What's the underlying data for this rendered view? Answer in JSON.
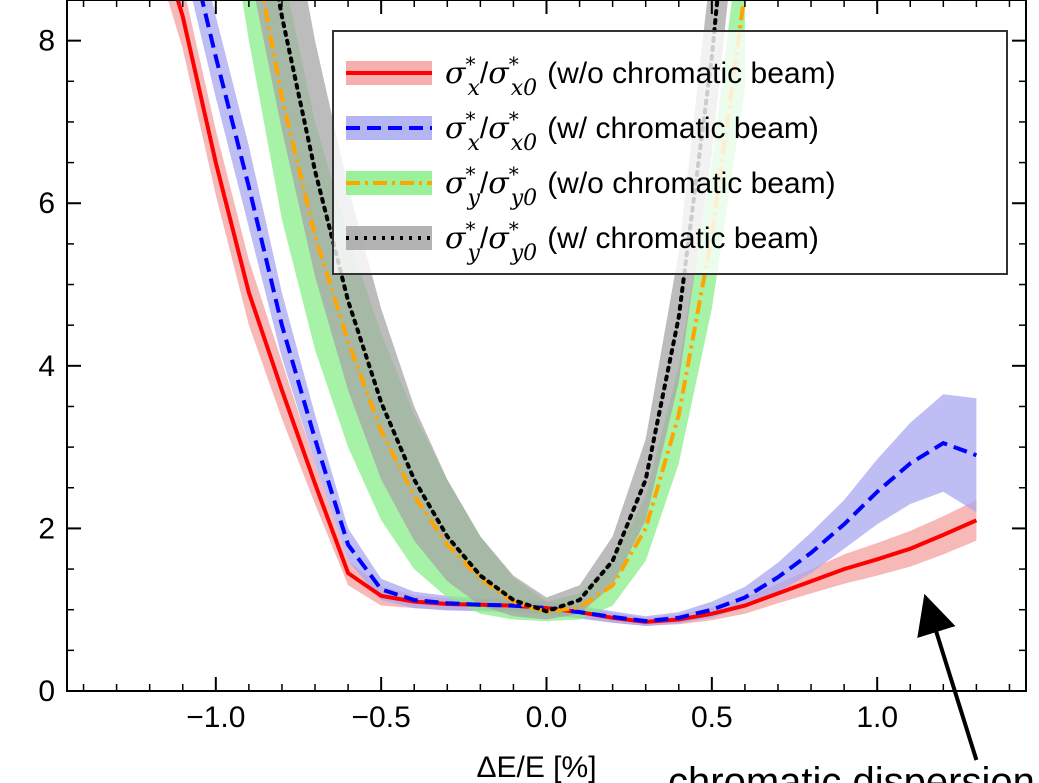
{
  "chart_data": {
    "type": "line",
    "title": "",
    "xlabel": "ΔE/E [%]",
    "ylabel": "",
    "xlim": [
      -1.45,
      1.45
    ],
    "ylim": [
      0,
      8.5
    ],
    "x_ticks": [
      -1.0,
      -0.5,
      0.0,
      0.5,
      1.0
    ],
    "x_tick_labels": [
      "−1.0",
      "−0.5",
      "0.0",
      "0.5",
      "1.0"
    ],
    "y_ticks": [
      0,
      2,
      4,
      6,
      8
    ],
    "y_tick_labels": [
      "0",
      "2",
      "4",
      "6",
      "8"
    ],
    "grid": false,
    "legend_placement": "top-right",
    "series": [
      {
        "name": "σ*x/σ*x0 (w/o chromatic beam)",
        "legend_math_base": "σ",
        "legend_math_sub1": "x",
        "legend_math_sub2": "x0",
        "legend_suffix": "(w/o chromatic beam)",
        "line_color": "#ff0000",
        "band_color": "#f4a0a0",
        "dash": "solid",
        "x": [
          -1.3,
          -1.1,
          -1.0,
          -0.9,
          -0.8,
          -0.7,
          -0.6,
          -0.5,
          -0.4,
          -0.3,
          -0.2,
          -0.1,
          0.0,
          0.1,
          0.2,
          0.3,
          0.4,
          0.5,
          0.6,
          0.7,
          0.8,
          0.9,
          1.0,
          1.1,
          1.2,
          1.3
        ],
        "y": [
          11.0,
          8.3,
          6.5,
          4.9,
          3.7,
          2.55,
          1.45,
          1.17,
          1.1,
          1.07,
          1.06,
          1.05,
          1.02,
          0.97,
          0.9,
          0.85,
          0.88,
          0.95,
          1.05,
          1.2,
          1.35,
          1.5,
          1.62,
          1.75,
          1.92,
          2.1
        ],
        "band_lo": [
          10.6,
          7.9,
          6.1,
          4.5,
          3.35,
          2.3,
          1.3,
          1.05,
          1.02,
          1.0,
          0.99,
          0.98,
          0.95,
          0.9,
          0.84,
          0.8,
          0.82,
          0.87,
          0.95,
          1.08,
          1.2,
          1.32,
          1.42,
          1.53,
          1.68,
          1.85
        ],
        "band_hi": [
          11.4,
          8.7,
          6.9,
          5.3,
          4.05,
          2.8,
          1.6,
          1.29,
          1.18,
          1.14,
          1.13,
          1.12,
          1.09,
          1.04,
          0.96,
          0.9,
          0.94,
          1.03,
          1.15,
          1.32,
          1.5,
          1.68,
          1.82,
          1.97,
          2.15,
          2.35
        ]
      },
      {
        "name": "σ*x/σ*x0 (w/ chromatic beam)",
        "legend_math_base": "σ",
        "legend_math_sub1": "x",
        "legend_math_sub2": "x0",
        "legend_suffix": "(w/ chromatic beam)",
        "line_color": "#0000ff",
        "band_color": "#a8a8f0",
        "dash": "dashed",
        "x": [
          -1.3,
          -1.1,
          -1.0,
          -0.9,
          -0.8,
          -0.7,
          -0.6,
          -0.5,
          -0.4,
          -0.3,
          -0.2,
          -0.1,
          0.0,
          0.1,
          0.2,
          0.3,
          0.4,
          0.5,
          0.6,
          0.7,
          0.8,
          0.9,
          1.0,
          1.1,
          1.2,
          1.3
        ],
        "y": [
          11.5,
          9.5,
          7.8,
          6.2,
          4.5,
          3.1,
          1.8,
          1.25,
          1.12,
          1.08,
          1.06,
          1.05,
          1.02,
          0.97,
          0.91,
          0.86,
          0.9,
          1.0,
          1.15,
          1.4,
          1.7,
          2.05,
          2.45,
          2.8,
          3.05,
          2.9
        ],
        "band_lo": [
          11.0,
          9.0,
          7.3,
          5.7,
          4.1,
          2.8,
          1.6,
          1.12,
          1.02,
          0.99,
          0.98,
          0.97,
          0.94,
          0.89,
          0.84,
          0.8,
          0.83,
          0.9,
          1.03,
          1.22,
          1.45,
          1.75,
          2.05,
          2.3,
          2.45,
          2.2
        ],
        "band_hi": [
          12.0,
          10.0,
          8.3,
          6.7,
          4.9,
          3.4,
          2.0,
          1.38,
          1.22,
          1.17,
          1.14,
          1.13,
          1.1,
          1.05,
          0.98,
          0.92,
          0.97,
          1.1,
          1.28,
          1.58,
          1.95,
          2.35,
          2.85,
          3.3,
          3.65,
          3.6
        ]
      },
      {
        "name": "σ*y/σ*y0 (w/o chromatic beam)",
        "legend_math_base": "σ",
        "legend_math_sub1": "y",
        "legend_math_sub2": "y0",
        "legend_suffix": "(w/o chromatic beam)",
        "line_color": "#ffa500",
        "band_color": "#88ee88",
        "dash": "dashdot",
        "x": [
          -1.0,
          -0.9,
          -0.8,
          -0.7,
          -0.6,
          -0.5,
          -0.4,
          -0.3,
          -0.2,
          -0.1,
          0.0,
          0.1,
          0.2,
          0.3,
          0.4,
          0.5,
          0.6
        ],
        "y": [
          12.0,
          9.5,
          7.3,
          5.6,
          4.3,
          3.2,
          2.4,
          1.8,
          1.38,
          1.1,
          0.97,
          1.03,
          1.3,
          2.0,
          3.4,
          5.6,
          8.6
        ],
        "band_lo": [
          10.5,
          8.0,
          5.8,
          4.2,
          3.0,
          2.1,
          1.5,
          1.15,
          0.95,
          0.88,
          0.86,
          0.88,
          1.05,
          1.6,
          2.8,
          4.7,
          7.4
        ],
        "band_hi": [
          13.5,
          11.0,
          8.9,
          7.0,
          5.6,
          4.4,
          3.4,
          2.6,
          1.9,
          1.4,
          1.1,
          1.2,
          1.6,
          2.4,
          4.0,
          6.5,
          9.8
        ]
      },
      {
        "name": "σ*y/σ*y0 (w/ chromatic beam)",
        "legend_math_base": "σ",
        "legend_math_sub1": "y",
        "legend_math_sub2": "y0",
        "legend_suffix": "(w/ chromatic beam)",
        "line_color": "#000000",
        "band_color": "#a6a6a6",
        "dash": "dotted",
        "x": [
          -0.9,
          -0.8,
          -0.7,
          -0.6,
          -0.5,
          -0.4,
          -0.3,
          -0.2,
          -0.1,
          0.0,
          0.1,
          0.2,
          0.3,
          0.4,
          0.5,
          0.6
        ],
        "y": [
          10.5,
          8.3,
          6.4,
          4.8,
          3.55,
          2.6,
          1.9,
          1.42,
          1.12,
          0.98,
          1.12,
          1.6,
          2.6,
          4.6,
          7.8,
          12.0
        ],
        "band_lo": [
          8.9,
          6.9,
          5.1,
          3.7,
          2.6,
          1.85,
          1.35,
          1.05,
          0.92,
          0.88,
          0.95,
          1.3,
          2.1,
          3.8,
          6.6,
          10.5
        ],
        "band_hi": [
          12.5,
          10.2,
          8.0,
          6.2,
          4.7,
          3.5,
          2.6,
          1.9,
          1.42,
          1.15,
          1.3,
          1.9,
          3.1,
          5.4,
          9.0,
          13.5
        ]
      }
    ],
    "annotations": [
      {
        "text": "chromatic dispersion",
        "arrow_from": [
          1.3,
          -1.7
        ],
        "arrow_to": [
          1.15,
          1.15
        ]
      }
    ]
  }
}
